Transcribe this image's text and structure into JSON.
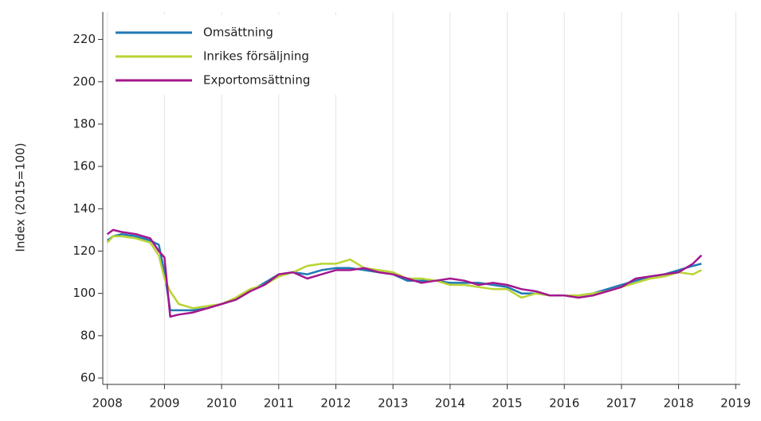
{
  "chart_data": {
    "type": "line",
    "y_label": "Index (2015=100)",
    "x": [
      2008.0,
      2008.1,
      2008.25,
      2008.5,
      2008.75,
      2008.9,
      2009.0,
      2009.1,
      2009.25,
      2009.5,
      2009.75,
      2010.0,
      2010.25,
      2010.5,
      2010.75,
      2011.0,
      2011.25,
      2011.5,
      2011.75,
      2012.0,
      2012.25,
      2012.5,
      2012.75,
      2013.0,
      2013.25,
      2013.5,
      2013.75,
      2014.0,
      2014.25,
      2014.5,
      2014.75,
      2015.0,
      2015.25,
      2015.5,
      2015.75,
      2016.0,
      2016.25,
      2016.5,
      2016.75,
      2017.0,
      2017.25,
      2017.5,
      2017.75,
      2018.0,
      2018.25,
      2018.4
    ],
    "series": [
      {
        "name": "Omsättning",
        "color": "#1f7ab5",
        "values": [
          125,
          127,
          128,
          127,
          125,
          123,
          110,
          92,
          92,
          92,
          93,
          95,
          97,
          101,
          105,
          109,
          110,
          109,
          111,
          112,
          112,
          111,
          110,
          109,
          106,
          106,
          106,
          105,
          105,
          105,
          104,
          103,
          100,
          100,
          99,
          99,
          99,
          100,
          102,
          104,
          106,
          108,
          109,
          111,
          113,
          114
        ]
      },
      {
        "name": "Inrikes försäljning",
        "color": "#b8d432",
        "values": [
          124,
          127,
          127,
          126,
          124,
          118,
          107,
          101,
          95,
          93,
          94,
          95,
          98,
          102,
          104,
          108,
          110,
          113,
          114,
          114,
          116,
          112,
          111,
          110,
          107,
          107,
          106,
          104,
          104,
          103,
          102,
          102,
          98,
          100,
          99,
          99,
          99,
          100,
          101,
          103,
          105,
          107,
          108,
          110,
          109,
          111
        ]
      },
      {
        "name": "Exportomsättning",
        "color": "#a3178f",
        "values": [
          128,
          130,
          129,
          128,
          126,
          120,
          117,
          89,
          90,
          91,
          93,
          95,
          97,
          101,
          104,
          109,
          110,
          107,
          109,
          111,
          111,
          112,
          110,
          109,
          107,
          105,
          106,
          107,
          106,
          104,
          105,
          104,
          102,
          101,
          99,
          99,
          98,
          99,
          101,
          103,
          107,
          108,
          109,
          110,
          114,
          118
        ]
      }
    ],
    "xlim": [
      2007.92,
      2019.08
    ],
    "ylim": [
      57,
      233
    ],
    "xticks": [
      2008,
      2009,
      2010,
      2011,
      2012,
      2013,
      2014,
      2015,
      2016,
      2017,
      2018,
      2019
    ],
    "yticks": [
      60,
      80,
      100,
      120,
      140,
      160,
      180,
      200,
      220
    ],
    "grid": "x",
    "legend": "top-left"
  }
}
